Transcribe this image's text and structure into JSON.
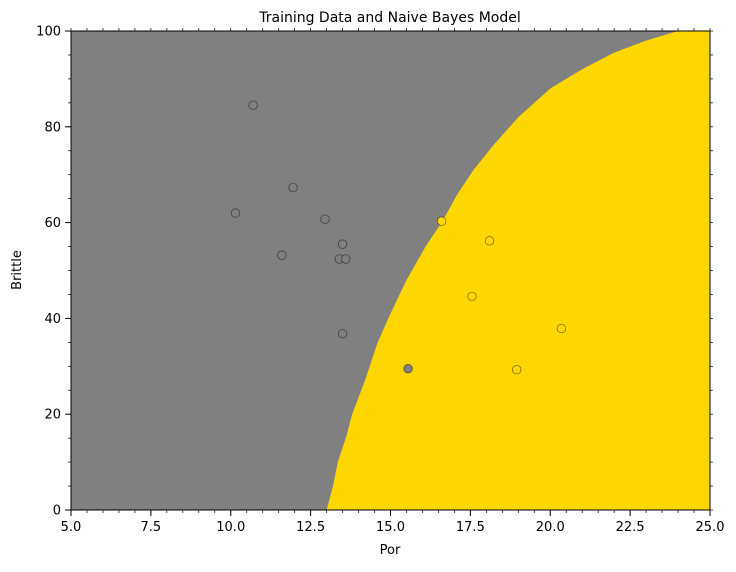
{
  "chart_data": {
    "type": "scatter",
    "title": "Training Data and Naive Bayes Model",
    "xlabel": "Por",
    "ylabel": "Brittle",
    "xlim": [
      5.0,
      25.0
    ],
    "ylim": [
      0,
      100
    ],
    "x_ticks": [
      "5.0",
      "7.5",
      "10.0",
      "12.5",
      "15.0",
      "17.5",
      "20.0",
      "22.5",
      "25.0"
    ],
    "y_ticks": [
      "0",
      "20",
      "40",
      "60",
      "80",
      "100"
    ],
    "region_colors": {
      "class_0": "#808080",
      "class_1": "#ffd700"
    },
    "decision_boundary": [
      [
        13.0,
        0
      ],
      [
        13.2,
        5
      ],
      [
        13.35,
        10
      ],
      [
        13.6,
        15
      ],
      [
        13.8,
        20
      ],
      [
        14.2,
        27
      ],
      [
        14.6,
        35
      ],
      [
        15.0,
        41
      ],
      [
        15.5,
        48
      ],
      [
        16.1,
        55
      ],
      [
        16.6,
        60
      ],
      [
        17.1,
        66
      ],
      [
        17.6,
        71
      ],
      [
        18.2,
        76
      ],
      [
        19.0,
        82
      ],
      [
        20.0,
        88
      ],
      [
        21.0,
        92
      ],
      [
        22.0,
        95.5
      ],
      [
        23.0,
        98
      ],
      [
        24.0,
        100
      ]
    ],
    "points": [
      {
        "x": 10.7,
        "y": 84.5,
        "class": 0
      },
      {
        "x": 10.15,
        "y": 62.0,
        "class": 0
      },
      {
        "x": 11.95,
        "y": 67.3,
        "class": 0
      },
      {
        "x": 11.6,
        "y": 53.2,
        "class": 0
      },
      {
        "x": 12.95,
        "y": 60.7,
        "class": 0
      },
      {
        "x": 13.5,
        "y": 55.5,
        "class": 0
      },
      {
        "x": 13.4,
        "y": 52.4,
        "class": 0
      },
      {
        "x": 13.6,
        "y": 52.4,
        "class": 0
      },
      {
        "x": 13.5,
        "y": 36.8,
        "class": 0
      },
      {
        "x": 15.55,
        "y": 29.5,
        "class": 0
      },
      {
        "x": 16.6,
        "y": 60.3,
        "class": 1
      },
      {
        "x": 18.1,
        "y": 56.2,
        "class": 1
      },
      {
        "x": 17.55,
        "y": 44.6,
        "class": 1
      },
      {
        "x": 20.35,
        "y": 37.9,
        "class": 1
      },
      {
        "x": 18.95,
        "y": 29.3,
        "class": 1
      }
    ]
  }
}
